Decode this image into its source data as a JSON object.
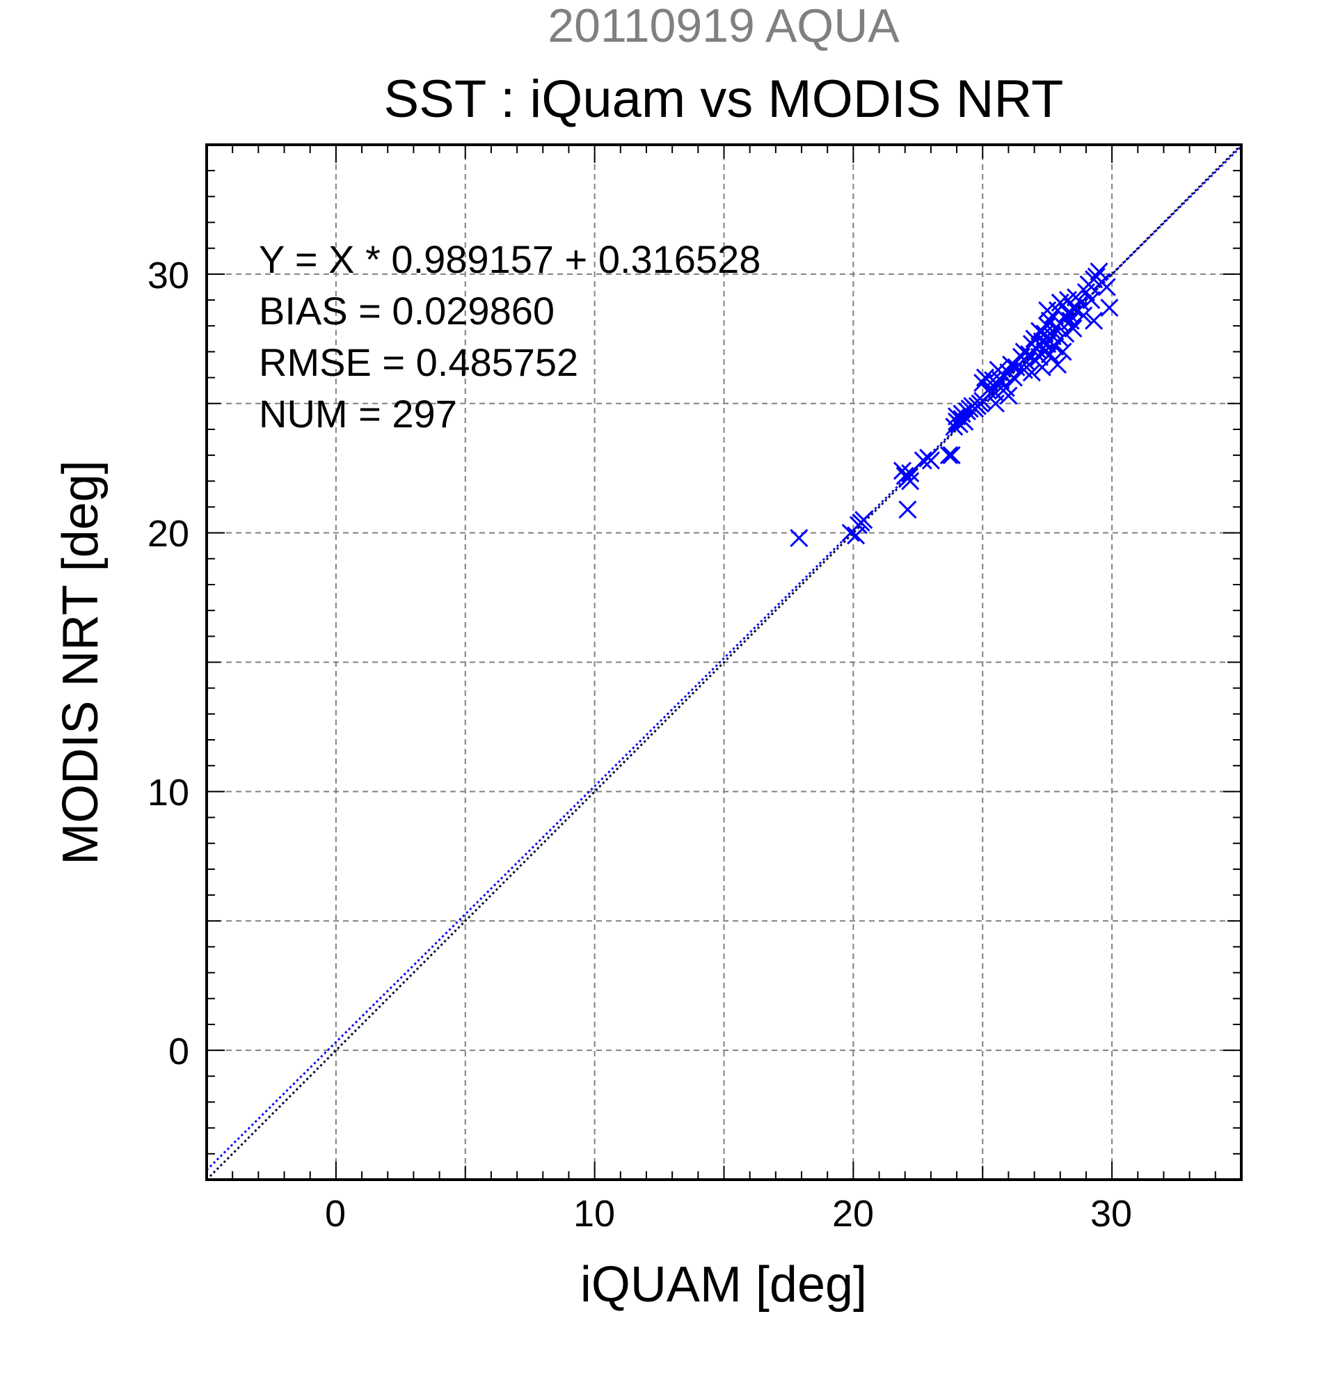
{
  "chart_data": {
    "type": "scatter",
    "supertitle": "20110919 AQUA",
    "title": "SST : iQuam vs MODIS NRT",
    "xlabel": "iQUAM [deg]",
    "ylabel": "MODIS NRT [deg]",
    "xlim": [
      -5,
      35
    ],
    "ylim": [
      -5,
      35
    ],
    "xticks": [
      "0",
      "10",
      "20",
      "30"
    ],
    "yticks": [
      "0",
      "10",
      "20",
      "30"
    ],
    "grid": true,
    "marker": "x",
    "colors": {
      "points": "#0000ff",
      "fit_line": "#0000ff",
      "identity_line": "#000033",
      "supertitle": "#808080",
      "grid": "#808080"
    },
    "stats": [
      "Y = X * 0.989157 + 0.316528",
      "BIAS = 0.029860",
      "RMSE = 0.485752",
      "NUM = 297"
    ],
    "fit": {
      "slope": 0.989157,
      "intercept": 0.316528
    },
    "series": [
      {
        "points": [
          [
            17.9,
            19.8
          ],
          [
            19.9,
            20.0
          ],
          [
            20.1,
            19.9
          ],
          [
            20.2,
            20.3
          ],
          [
            20.3,
            20.4
          ],
          [
            20.4,
            20.5
          ],
          [
            21.9,
            22.4
          ],
          [
            22.0,
            22.2
          ],
          [
            22.1,
            22.1
          ],
          [
            22.2,
            22.3
          ],
          [
            22.2,
            22.0
          ],
          [
            22.1,
            20.9
          ],
          [
            22.7,
            22.8
          ],
          [
            22.9,
            22.9
          ],
          [
            23.0,
            22.8
          ],
          [
            23.7,
            23.0
          ],
          [
            23.8,
            23.0
          ],
          [
            23.9,
            24.1
          ],
          [
            24.0,
            24.3
          ],
          [
            24.0,
            24.5
          ],
          [
            24.1,
            24.2
          ],
          [
            24.2,
            24.4
          ],
          [
            24.2,
            24.6
          ],
          [
            24.3,
            24.3
          ],
          [
            24.4,
            24.7
          ],
          [
            24.5,
            24.8
          ],
          [
            24.6,
            24.9
          ],
          [
            24.7,
            24.8
          ],
          [
            24.8,
            24.9
          ],
          [
            24.9,
            25.0
          ],
          [
            25.0,
            25.1
          ],
          [
            25.0,
            25.8
          ],
          [
            25.1,
            26.0
          ],
          [
            25.2,
            25.5
          ],
          [
            25.3,
            25.6
          ],
          [
            25.4,
            25.9
          ],
          [
            25.5,
            25.4
          ],
          [
            25.5,
            25.0
          ],
          [
            25.6,
            26.3
          ],
          [
            25.6,
            25.7
          ],
          [
            25.7,
            25.9
          ],
          [
            25.8,
            25.5
          ],
          [
            25.8,
            26.1
          ],
          [
            25.9,
            25.6
          ],
          [
            26.0,
            25.3
          ],
          [
            26.0,
            26.2
          ],
          [
            26.1,
            26.5
          ],
          [
            26.2,
            26.0
          ],
          [
            26.3,
            26.4
          ],
          [
            26.5,
            26.8
          ],
          [
            26.6,
            27.0
          ],
          [
            26.6,
            26.3
          ],
          [
            26.7,
            26.6
          ],
          [
            26.8,
            26.9
          ],
          [
            26.9,
            26.2
          ],
          [
            26.9,
            27.3
          ],
          [
            27.0,
            27.5
          ],
          [
            27.0,
            26.7
          ],
          [
            27.1,
            27.1
          ],
          [
            27.2,
            27.8
          ],
          [
            27.2,
            26.8
          ],
          [
            27.3,
            27.4
          ],
          [
            27.4,
            27.7
          ],
          [
            27.4,
            27.0
          ],
          [
            27.5,
            28.0
          ],
          [
            27.5,
            27.3
          ],
          [
            27.6,
            28.2
          ],
          [
            27.6,
            26.9
          ],
          [
            27.7,
            27.6
          ],
          [
            27.7,
            28.4
          ],
          [
            27.8,
            27.9
          ],
          [
            27.8,
            27.2
          ],
          [
            27.9,
            28.6
          ],
          [
            27.9,
            26.5
          ],
          [
            28.0,
            28.1
          ],
          [
            28.0,
            27.5
          ],
          [
            28.1,
            28.8
          ],
          [
            28.1,
            27.0
          ],
          [
            28.2,
            28.3
          ],
          [
            28.2,
            27.7
          ],
          [
            28.3,
            29.0
          ],
          [
            28.3,
            28.5
          ],
          [
            28.4,
            28.2
          ],
          [
            28.5,
            28.7
          ],
          [
            28.5,
            27.9
          ],
          [
            28.6,
            29.1
          ],
          [
            28.7,
            28.6
          ],
          [
            28.8,
            28.9
          ],
          [
            28.9,
            28.4
          ],
          [
            29.0,
            29.3
          ],
          [
            29.1,
            29.6
          ],
          [
            29.2,
            29.0
          ],
          [
            29.3,
            29.8
          ],
          [
            29.3,
            28.2
          ],
          [
            29.4,
            29.9
          ],
          [
            29.5,
            30.1
          ],
          [
            29.6,
            29.7
          ],
          [
            29.8,
            29.5
          ],
          [
            29.9,
            28.7
          ],
          [
            28.0,
            28.9
          ],
          [
            27.5,
            28.6
          ],
          [
            27.3,
            26.4
          ]
        ]
      }
    ]
  }
}
